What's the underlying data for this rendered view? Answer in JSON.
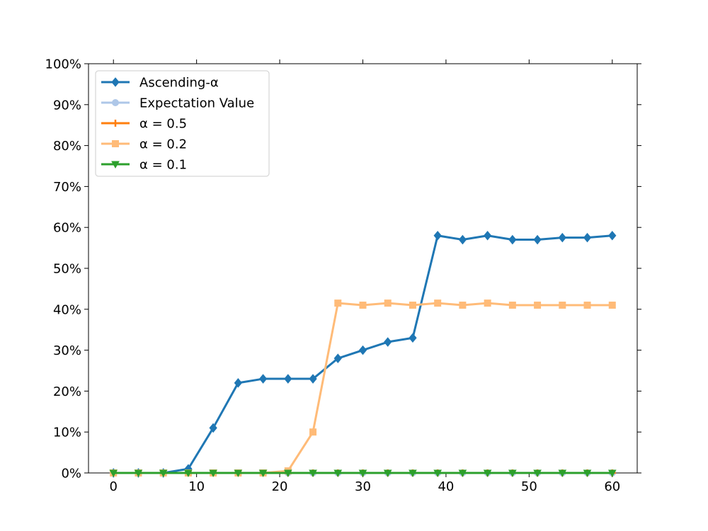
{
  "chart_data": {
    "type": "line",
    "title": "",
    "xlabel": "",
    "ylabel": "",
    "xlim": [
      -3,
      63
    ],
    "ylim": [
      0,
      1.0
    ],
    "xticks": [
      0,
      10,
      20,
      30,
      40,
      50,
      60
    ],
    "xtick_labels": [
      "0",
      "10",
      "20",
      "30",
      "40",
      "50",
      "60"
    ],
    "yticks": [
      0,
      0.1,
      0.2,
      0.3,
      0.4,
      0.5,
      0.6,
      0.7,
      0.8,
      0.9,
      1.0
    ],
    "ytick_labels": [
      "0%",
      "10%",
      "20%",
      "30%",
      "40%",
      "50%",
      "60%",
      "70%",
      "80%",
      "90%",
      "100%"
    ],
    "grid": false,
    "legend_position": "top-left",
    "x": [
      0,
      3,
      6,
      9,
      12,
      15,
      18,
      21,
      24,
      27,
      30,
      33,
      36,
      39,
      42,
      45,
      48,
      51,
      54,
      57,
      60
    ],
    "series": [
      {
        "name": "Ascending-α",
        "color": "#1f77b4",
        "marker": "diamond",
        "values": [
          0,
          0,
          0,
          0.01,
          0.11,
          0.22,
          0.23,
          0.23,
          0.23,
          0.28,
          0.3,
          0.32,
          0.33,
          0.58,
          0.57,
          0.58,
          0.57,
          0.57,
          0.575,
          0.575,
          0.58
        ]
      },
      {
        "name": "Expectation Value",
        "color": "#aec7e8",
        "marker": "circle",
        "values": [
          0,
          0,
          0,
          0,
          0,
          0,
          0,
          0,
          0,
          0,
          0,
          0,
          0,
          0,
          0,
          0,
          0,
          0,
          0,
          0,
          0
        ]
      },
      {
        "name": "α = 0.5",
        "color": "#ff7f0e",
        "marker": "plus",
        "values": [
          0,
          0,
          0,
          0,
          0,
          0,
          0,
          0,
          0,
          0,
          0,
          0,
          0,
          0,
          0,
          0,
          0,
          0,
          0,
          0,
          0
        ]
      },
      {
        "name": "α = 0.2",
        "color": "#ffbb78",
        "marker": "square",
        "values": [
          0,
          0,
          0,
          0,
          0,
          0,
          0,
          0.005,
          0.1,
          0.415,
          0.41,
          0.415,
          0.41,
          0.415,
          0.41,
          0.415,
          0.41,
          0.41,
          0.41,
          0.41,
          0.41
        ]
      },
      {
        "name": "α = 0.1",
        "color": "#2ca02c",
        "marker": "triangle-down",
        "values": [
          0,
          0,
          0,
          0,
          0,
          0,
          0,
          0,
          0,
          0,
          0,
          0,
          0,
          0,
          0,
          0,
          0,
          0,
          0,
          0,
          0
        ]
      }
    ]
  }
}
